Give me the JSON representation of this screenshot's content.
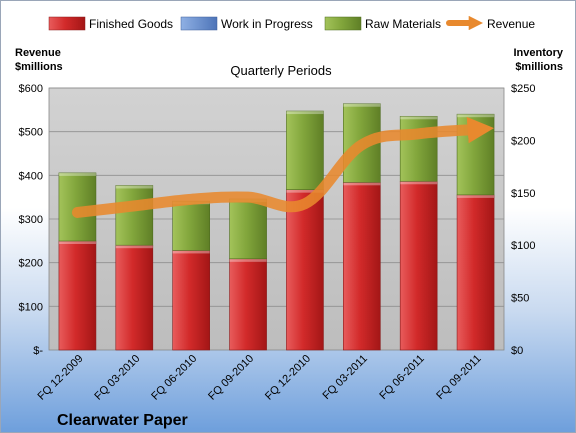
{
  "company": "Clearwater Paper",
  "colors": {
    "finished_goods": "#cc2424",
    "work_in_progress": "#5f87c8",
    "raw_materials": "#7ea036",
    "revenue": "#e8892e",
    "plot_background": "#c6c6c6"
  },
  "chart_data": {
    "type": "bar",
    "subtype": "stacked bar with line overlay",
    "title": "Quarterly Periods",
    "categories": [
      "FQ 12-2009",
      "FQ 03-2010",
      "FQ 06-2010",
      "FQ 09-2010",
      "FQ 12-2010",
      "FQ 03-2011",
      "FQ 06-2011",
      "FQ 09-2011"
    ],
    "left_axis": {
      "label_line1": "Revenue",
      "label_line2": "$millions",
      "range": [
        0,
        600
      ],
      "ticks": [
        0,
        100,
        200,
        300,
        400,
        500,
        600
      ],
      "tick_labels": [
        "$-",
        "$100",
        "$200",
        "$300",
        "$400",
        "$500",
        "$600"
      ]
    },
    "right_axis": {
      "label_line1": "Inventory",
      "label_line2": "$millions",
      "range": [
        0,
        250
      ],
      "ticks": [
        0,
        50,
        100,
        150,
        200,
        250
      ],
      "tick_labels": [
        "$0",
        "$50",
        "$100",
        "$150",
        "$200",
        "$250"
      ]
    },
    "grid": true,
    "legend_position": "top",
    "series": [
      {
        "name": "Finished Goods",
        "type": "bar",
        "axis": "right",
        "color_key": "finished_goods",
        "values": [
          104,
          100,
          95,
          87,
          153,
          160,
          161,
          148
        ]
      },
      {
        "name": "Work in Progress",
        "type": "bar",
        "axis": "right",
        "color_key": "work_in_progress",
        "values": [
          0,
          0,
          0,
          0,
          0,
          0,
          0,
          0
        ]
      },
      {
        "name": "Raw Materials",
        "type": "bar",
        "axis": "right",
        "color_key": "raw_materials",
        "values": [
          65,
          57,
          47,
          57,
          75,
          75,
          62,
          77
        ]
      },
      {
        "name": "Revenue",
        "type": "line",
        "axis": "left",
        "color_key": "revenue",
        "values": [
          315,
          330,
          345,
          350,
          335,
          470,
          495,
          505
        ]
      }
    ]
  }
}
